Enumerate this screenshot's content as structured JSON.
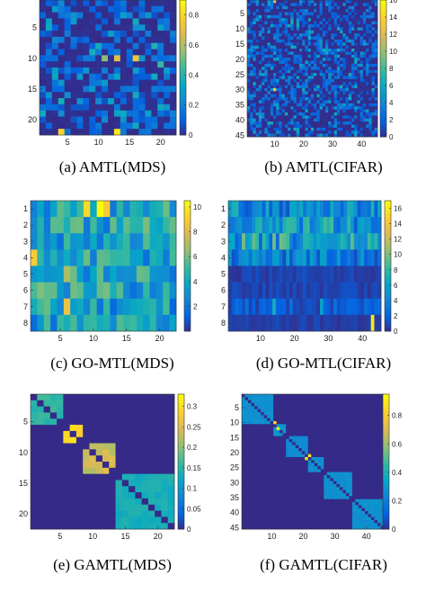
{
  "colors": {
    "cmap": "parula",
    "low": "#352a87",
    "high": "#f9fb0e",
    "frame": "#000000"
  },
  "captions": {
    "a": "(a)  AMTL(MDS)",
    "b": "(b)  AMTL(CIFAR)",
    "c": "(c)  GO-MTL(MDS)",
    "d": "(d)  GO-MTL(CIFAR)",
    "e": "(e)  GAMTL(MDS)",
    "f": "(f)  GAMTL(CIFAR)"
  },
  "chart_data": [
    {
      "id": "a",
      "type": "heatmap",
      "rows": 22,
      "cols": 22,
      "xticks": [
        5,
        10,
        15,
        20
      ],
      "xtick_labels": [
        "5",
        "10",
        "15",
        "20"
      ],
      "yticks": [
        5,
        10,
        15,
        20
      ],
      "ytick_labels": [
        "5",
        "10",
        "15",
        "20"
      ],
      "colorbar": {
        "min": 0,
        "max": 0.9,
        "ticks": [
          0,
          0.2,
          0.4,
          0.6,
          0.8
        ],
        "labels": [
          "0",
          "0.2",
          "0.4",
          "0.6",
          "0.8"
        ]
      },
      "pattern": "sparse",
      "hot_cells": [
        [
          10,
          13,
          0.7
        ],
        [
          10,
          16,
          0.75
        ],
        [
          10,
          11,
          0.55
        ],
        [
          22,
          4,
          0.8
        ],
        [
          22,
          13,
          0.85
        ],
        [
          8,
          19,
          0.4
        ],
        [
          11,
          20,
          0.45
        ],
        [
          15,
          9,
          0.3
        ],
        [
          4,
          6,
          0.3
        ]
      ]
    },
    {
      "id": "b",
      "type": "heatmap",
      "rows": 45,
      "cols": 45,
      "xticks": [
        10,
        20,
        30,
        40
      ],
      "xtick_labels": [
        "10",
        "20",
        "30",
        "40"
      ],
      "yticks": [
        5,
        10,
        15,
        20,
        25,
        30,
        35,
        40,
        45
      ],
      "ytick_labels": [
        "5",
        "10",
        "15",
        "20",
        "25",
        "30",
        "35",
        "40",
        "45"
      ],
      "colorbar": {
        "min": 0,
        "max": 16,
        "ticks": [
          0,
          2,
          4,
          6,
          8,
          10,
          12,
          14,
          16
        ],
        "labels": [
          "0",
          "2",
          "4",
          "6",
          "8",
          "10",
          "12",
          "14",
          "16"
        ]
      },
      "pattern": "sparse",
      "hot_cells": [
        [
          1,
          10,
          12
        ],
        [
          30,
          10,
          13
        ],
        [
          18,
          10,
          6
        ],
        [
          18,
          16,
          5
        ],
        [
          24,
          40,
          5
        ],
        [
          35,
          10,
          5
        ],
        [
          8,
          44,
          4
        ]
      ]
    },
    {
      "id": "c",
      "type": "heatmap",
      "rows": 8,
      "cols": 22,
      "xticks": [
        5,
        10,
        15,
        20
      ],
      "xtick_labels": [
        "5",
        "10",
        "15",
        "20"
      ],
      "yticks": [
        1,
        2,
        3,
        4,
        5,
        6,
        7,
        8
      ],
      "ytick_labels": [
        "1",
        "2",
        "3",
        "4",
        "5",
        "6",
        "7",
        "8"
      ],
      "colorbar": {
        "min": 0,
        "max": 10.5,
        "ticks": [
          2,
          4,
          6,
          8,
          10
        ],
        "labels": [
          "2",
          "4",
          "6",
          "8",
          "10"
        ]
      },
      "pattern": "dense",
      "hot_cells": [
        [
          1,
          9,
          9.5
        ],
        [
          1,
          11,
          10.5
        ],
        [
          1,
          12,
          9
        ],
        [
          4,
          1,
          9
        ],
        [
          7,
          6,
          8.5
        ],
        [
          5,
          6,
          7
        ]
      ]
    },
    {
      "id": "d",
      "type": "heatmap",
      "rows": 8,
      "cols": 45,
      "xticks": [
        10,
        20,
        30,
        40
      ],
      "xtick_labels": [
        "10",
        "20",
        "30",
        "40"
      ],
      "yticks": [
        1,
        2,
        3,
        4,
        5,
        6,
        7,
        8
      ],
      "ytick_labels": [
        "1",
        "2",
        "3",
        "4",
        "5",
        "6",
        "7",
        "8"
      ],
      "colorbar": {
        "min": 0,
        "max": 17,
        "ticks": [
          0,
          2,
          4,
          6,
          8,
          10,
          12,
          14,
          16
        ],
        "labels": [
          "0",
          "2",
          "4",
          "6",
          "8",
          "10",
          "12",
          "14",
          "16"
        ]
      },
      "pattern": "rows",
      "hot_cells": [
        [
          8,
          43,
          16
        ],
        [
          2,
          20,
          8
        ],
        [
          3,
          35,
          7
        ],
        [
          4,
          8,
          6
        ],
        [
          7,
          14,
          7
        ],
        [
          7,
          28,
          6
        ]
      ]
    },
    {
      "id": "e",
      "type": "heatmap",
      "rows": 22,
      "cols": 22,
      "xticks": [
        5,
        10,
        15,
        20
      ],
      "xtick_labels": [
        "5",
        "10",
        "15",
        "20"
      ],
      "yticks": [
        5,
        10,
        15,
        20
      ],
      "ytick_labels": [
        "5",
        "10",
        "15",
        "20"
      ],
      "colorbar": {
        "min": 0,
        "max": 0.33,
        "ticks": [
          0,
          0.05,
          0.1,
          0.15,
          0.2,
          0.25,
          0.3
        ],
        "labels": [
          "0",
          "0.05",
          "0.1",
          "0.15",
          "0.2",
          "0.25",
          "0.3"
        ]
      },
      "pattern": "blocks",
      "blocks": [
        [
          1,
          5,
          0.17
        ],
        [
          6,
          8,
          0.33
        ],
        [
          9,
          13,
          0.26
        ],
        [
          14,
          22,
          0.15
        ]
      ]
    },
    {
      "id": "f",
      "type": "heatmap",
      "rows": 45,
      "cols": 45,
      "xticks": [
        10,
        20,
        30,
        40
      ],
      "xtick_labels": [
        "10",
        "20",
        "30",
        "40"
      ],
      "yticks": [
        5,
        10,
        15,
        20,
        25,
        30,
        35,
        40,
        45
      ],
      "ytick_labels": [
        "5",
        "10",
        "15",
        "20",
        "25",
        "30",
        "35",
        "40",
        "45"
      ],
      "colorbar": {
        "min": 0,
        "max": 0.95,
        "ticks": [
          0,
          0.2,
          0.4,
          0.6,
          0.8
        ],
        "labels": [
          "0",
          "0.2",
          "0.4",
          "0.6",
          "0.8"
        ]
      },
      "pattern": "blocks",
      "blocks": [
        [
          1,
          10,
          0.3
        ],
        [
          11,
          14,
          0.32
        ],
        [
          15,
          21,
          0.28
        ],
        [
          22,
          26,
          0.3
        ],
        [
          27,
          35,
          0.3
        ],
        [
          36,
          45,
          0.3
        ]
      ],
      "hot_cells": [
        [
          12,
          12,
          0.9
        ],
        [
          10,
          11,
          0.85
        ],
        [
          21,
          22,
          0.9
        ],
        [
          22,
          21,
          0.9
        ]
      ]
    }
  ]
}
